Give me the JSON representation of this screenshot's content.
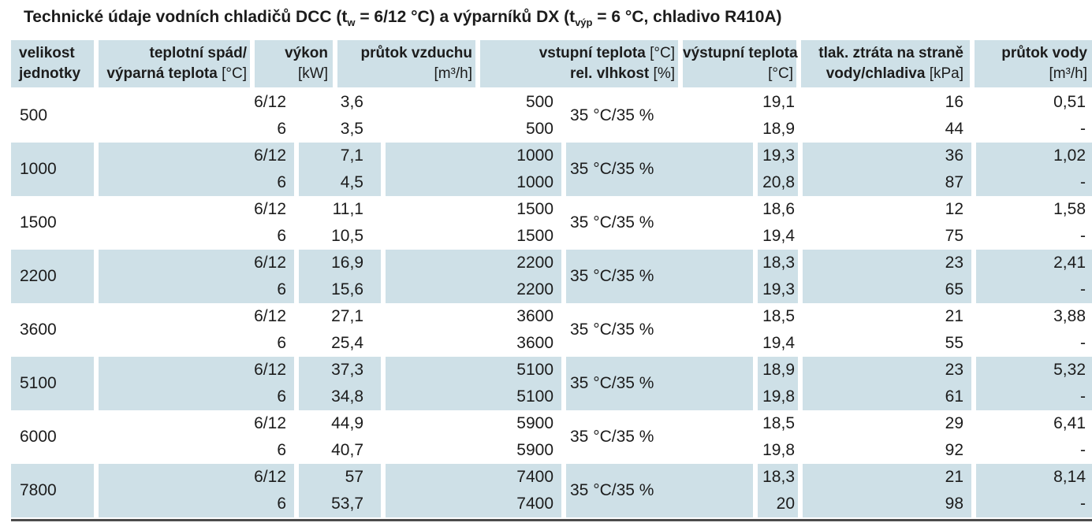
{
  "title": {
    "part1": "Technické údaje vodních chladičů DCC (t",
    "sub1": "w",
    "part2": " = 6/12 °C) a výparníků DX (t",
    "sub2": "výp",
    "part3": " = 6 °C, chladivo R410A)"
  },
  "colors": {
    "row_shaded": "#cee0e7",
    "bottom_rule": "#4c4c4c",
    "text": "#1c1c1c"
  },
  "table": {
    "headers": [
      {
        "key": "velikost-jednotky",
        "lines": [
          [
            {
              "t": "velikost",
              "b": true
            }
          ],
          [
            {
              "t": "jednotky",
              "b": true
            }
          ]
        ]
      },
      {
        "key": "teplotni-spad",
        "lines": [
          [
            {
              "t": "teplotní spád/",
              "b": true
            }
          ],
          [
            {
              "t": "výparná teplota ",
              "b": true
            },
            {
              "t": "[°C]",
              "b": false
            }
          ]
        ]
      },
      {
        "key": "vykon",
        "lines": [
          [
            {
              "t": "výkon",
              "b": true
            }
          ],
          [
            {
              "t": "[kW]",
              "b": false
            }
          ]
        ]
      },
      {
        "key": "prutok-vzduchu",
        "lines": [
          [
            {
              "t": "průtok vzduchu",
              "b": true
            }
          ],
          [
            {
              "t": "[m³/h]",
              "b": false
            }
          ]
        ]
      },
      {
        "key": "vstupni-teplota",
        "lines": [
          [
            {
              "t": "vstupní teplota ",
              "b": true
            },
            {
              "t": "[°C]",
              "b": false
            }
          ],
          [
            {
              "t": "rel. vlhkost ",
              "b": true
            },
            {
              "t": "[%]",
              "b": false
            }
          ]
        ]
      },
      {
        "key": "vystupni-teplota",
        "lines": [
          [
            {
              "t": "výstupní teplota",
              "b": true
            }
          ],
          [
            {
              "t": "[°C]",
              "b": false
            }
          ]
        ]
      },
      {
        "key": "tlak-ztrata",
        "lines": [
          [
            {
              "t": "tlak. ztráta na straně",
              "b": true
            }
          ],
          [
            {
              "t": "vody/chladiva ",
              "b": true
            },
            {
              "t": "[kPa]",
              "b": false
            }
          ]
        ]
      },
      {
        "key": "prutok-vody",
        "lines": [
          [
            {
              "t": "průtok vody",
              "b": true
            }
          ],
          [
            {
              "t": "[m³/h]",
              "b": false
            }
          ]
        ]
      }
    ],
    "rows": [
      {
        "size": "500",
        "shaded": false,
        "spad": [
          "6/12",
          "6"
        ],
        "vykon": [
          "3,6",
          "3,5"
        ],
        "vzduch": [
          "500",
          "500"
        ],
        "vstup": "35 °C/35 %",
        "vystup": [
          "19,1",
          "18,9"
        ],
        "tlak": [
          "16",
          "44"
        ],
        "voda": [
          "0,51",
          "-"
        ]
      },
      {
        "size": "1000",
        "shaded": true,
        "spad": [
          "6/12",
          "6"
        ],
        "vykon": [
          "7,1",
          "4,5"
        ],
        "vzduch": [
          "1000",
          "1000"
        ],
        "vstup": "35 °C/35 %",
        "vystup": [
          "19,3",
          "20,8"
        ],
        "tlak": [
          "36",
          "87"
        ],
        "voda": [
          "1,02",
          "-"
        ]
      },
      {
        "size": "1500",
        "shaded": false,
        "spad": [
          "6/12",
          "6"
        ],
        "vykon": [
          "11,1",
          "10,5"
        ],
        "vzduch": [
          "1500",
          "1500"
        ],
        "vstup": "35 °C/35 %",
        "vystup": [
          "18,6",
          "19,4"
        ],
        "tlak": [
          "12",
          "75"
        ],
        "voda": [
          "1,58",
          "-"
        ]
      },
      {
        "size": "2200",
        "shaded": true,
        "spad": [
          "6/12",
          "6"
        ],
        "vykon": [
          "16,9",
          "15,6"
        ],
        "vzduch": [
          "2200",
          "2200"
        ],
        "vstup": "35 °C/35 %",
        "vystup": [
          "18,3",
          "19,3"
        ],
        "tlak": [
          "23",
          "65"
        ],
        "voda": [
          "2,41",
          "-"
        ]
      },
      {
        "size": "3600",
        "shaded": false,
        "spad": [
          "6/12",
          "6"
        ],
        "vykon": [
          "27,1",
          "25,4"
        ],
        "vzduch": [
          "3600",
          "3600"
        ],
        "vstup": "35 °C/35 %",
        "vystup": [
          "18,5",
          "19,4"
        ],
        "tlak": [
          "21",
          "55"
        ],
        "voda": [
          "3,88",
          "-"
        ]
      },
      {
        "size": "5100",
        "shaded": true,
        "spad": [
          "6/12",
          "6"
        ],
        "vykon": [
          "37,3",
          "34,8"
        ],
        "vzduch": [
          "5100",
          "5100"
        ],
        "vstup": "35 °C/35 %",
        "vystup": [
          "18,9",
          "19,8"
        ],
        "tlak": [
          "23",
          "61"
        ],
        "voda": [
          "5,32",
          "-"
        ]
      },
      {
        "size": "6000",
        "shaded": false,
        "spad": [
          "6/12",
          "6"
        ],
        "vykon": [
          "44,9",
          "40,7"
        ],
        "vzduch": [
          "5900",
          "5900"
        ],
        "vstup": "35 °C/35 %",
        "vystup": [
          "18,5",
          "19,8"
        ],
        "tlak": [
          "29",
          "92"
        ],
        "voda": [
          "6,41",
          "-"
        ]
      },
      {
        "size": "7800",
        "shaded": true,
        "spad": [
          "6/12",
          "6"
        ],
        "vykon": [
          "57",
          "53,7"
        ],
        "vzduch": [
          "7400",
          "7400"
        ],
        "vstup": "35 °C/35 %",
        "vystup": [
          "18,3",
          "20"
        ],
        "tlak": [
          "21",
          "98"
        ],
        "voda": [
          "8,14",
          "-"
        ]
      }
    ]
  }
}
